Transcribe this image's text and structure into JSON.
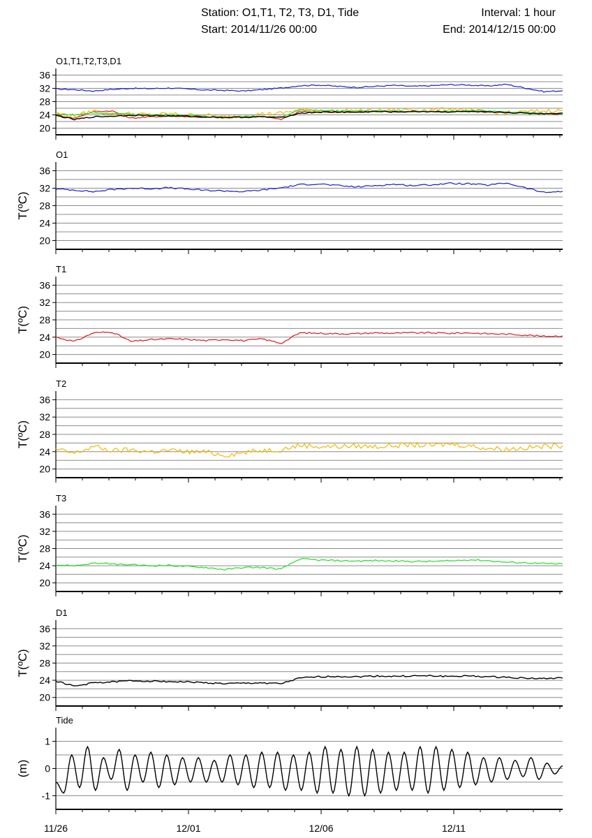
{
  "header": {
    "station": "Station: O1,T1, T2, T3, D1, Tide",
    "interval": "Interval: 1 hour",
    "start": "Start: 2014/11/26 00:00",
    "end": "End: 2014/12/15 00:00"
  },
  "colors": {
    "O1": "#1a1ad6",
    "T1": "#e01818",
    "T2": "#f5b800",
    "T3": "#22dd22",
    "D1": "#000000",
    "Tide": "#000000"
  },
  "chart_data": [
    {
      "type": "line",
      "title": "O1,T1,T2,T3,D1",
      "ylabel": "",
      "ylim": [
        18,
        38
      ],
      "yticks": [
        "20",
        "24",
        "28",
        "32",
        "36"
      ],
      "xticks": [
        "11/26",
        "12/01",
        "12/06",
        "12/11"
      ],
      "grid": true,
      "series": [
        {
          "key": "O1",
          "values": [
            31.8,
            31.6,
            31.2,
            31.7,
            32.0,
            31.9,
            32.1,
            31.8,
            31.5,
            31.4,
            31.2,
            31.6,
            32.1,
            32.8,
            33.0,
            32.6,
            32.3,
            32.6,
            32.9,
            32.6,
            32.8,
            33.1,
            33.0,
            32.7,
            33.2,
            32.1,
            31.0,
            31.3
          ]
        },
        {
          "key": "T1",
          "values": [
            24.0,
            23.0,
            25.0,
            25.2,
            23.0,
            23.4,
            23.6,
            23.5,
            23.2,
            23.5,
            23.2,
            23.6,
            22.6,
            25.0,
            24.9,
            24.8,
            24.8,
            25.0,
            24.9,
            25.0,
            25.0,
            24.9,
            25.0,
            24.8,
            24.7,
            24.5,
            24.2,
            24.3
          ]
        },
        {
          "key": "T2",
          "values": [
            24.5,
            23.6,
            25.2,
            24.2,
            24.4,
            24.0,
            24.3,
            24.0,
            23.9,
            23.2,
            23.8,
            24.3,
            24.5,
            25.5,
            25.2,
            25.2,
            25.3,
            25.2,
            25.4,
            25.6,
            25.4,
            25.8,
            25.4,
            24.8,
            24.6,
            24.9,
            25.2,
            25.4
          ]
        },
        {
          "key": "T3",
          "values": [
            24.2,
            24.0,
            24.6,
            24.4,
            24.2,
            24.0,
            24.1,
            23.8,
            23.6,
            23.1,
            23.6,
            23.6,
            23.2,
            25.6,
            25.3,
            25.2,
            25.1,
            25.2,
            25.1,
            25.0,
            25.0,
            25.1,
            25.4,
            25.2,
            24.8,
            24.7,
            24.5,
            24.4
          ]
        },
        {
          "key": "D1",
          "values": [
            23.8,
            22.6,
            23.4,
            23.6,
            23.9,
            23.8,
            23.7,
            23.6,
            23.4,
            23.2,
            23.3,
            23.4,
            23.2,
            24.5,
            24.8,
            24.9,
            24.8,
            25.0,
            24.9,
            25.0,
            25.0,
            24.9,
            25.0,
            24.8,
            24.7,
            24.5,
            24.4,
            24.5
          ]
        }
      ]
    },
    {
      "type": "line",
      "title": "O1",
      "ylabel": "T(ºC)",
      "ylim": [
        18,
        38
      ],
      "yticks": [
        "20",
        "24",
        "28",
        "32",
        "36"
      ],
      "xticks": [
        "11/26",
        "12/01",
        "12/06",
        "12/11"
      ],
      "grid": true,
      "series": [
        {
          "key": "O1",
          "values": [
            31.8,
            31.6,
            31.2,
            31.7,
            32.0,
            31.9,
            32.1,
            31.8,
            31.5,
            31.4,
            31.2,
            31.6,
            32.1,
            32.8,
            33.0,
            32.6,
            32.3,
            32.6,
            32.9,
            32.6,
            32.8,
            33.1,
            33.0,
            32.7,
            33.2,
            32.1,
            31.0,
            31.3
          ]
        }
      ]
    },
    {
      "type": "line",
      "title": "T1",
      "ylabel": "T(ºC)",
      "ylim": [
        18,
        38
      ],
      "yticks": [
        "20",
        "24",
        "28",
        "32",
        "36"
      ],
      "xticks": [
        "11/26",
        "12/01",
        "12/06",
        "12/11"
      ],
      "grid": true,
      "series": [
        {
          "key": "T1",
          "values": [
            24.0,
            23.0,
            25.0,
            25.2,
            23.0,
            23.4,
            23.6,
            23.5,
            23.2,
            23.5,
            23.2,
            23.6,
            22.6,
            25.0,
            24.9,
            24.8,
            24.8,
            25.0,
            24.9,
            25.0,
            25.0,
            24.9,
            25.0,
            24.8,
            24.7,
            24.5,
            24.2,
            24.3
          ]
        }
      ]
    },
    {
      "type": "line",
      "title": "T2",
      "ylabel": "T(ºC)",
      "ylim": [
        18,
        38
      ],
      "yticks": [
        "20",
        "24",
        "28",
        "32",
        "36"
      ],
      "xticks": [
        "11/26",
        "12/01",
        "12/06",
        "12/11"
      ],
      "grid": true,
      "series": [
        {
          "key": "T2",
          "values": [
            24.5,
            23.6,
            25.2,
            24.2,
            24.4,
            24.0,
            24.3,
            24.0,
            23.9,
            23.2,
            23.8,
            24.3,
            24.5,
            25.5,
            25.2,
            25.2,
            25.3,
            25.2,
            25.4,
            25.6,
            25.4,
            25.8,
            25.4,
            24.8,
            24.6,
            24.9,
            25.2,
            25.4
          ]
        }
      ]
    },
    {
      "type": "line",
      "title": "T3",
      "ylabel": "T(ºC)",
      "ylim": [
        18,
        38
      ],
      "yticks": [
        "20",
        "24",
        "28",
        "32",
        "36"
      ],
      "xticks": [
        "11/26",
        "12/01",
        "12/06",
        "12/11"
      ],
      "grid": true,
      "series": [
        {
          "key": "T3",
          "values": [
            24.2,
            24.0,
            24.6,
            24.4,
            24.2,
            24.0,
            24.1,
            23.8,
            23.6,
            23.1,
            23.6,
            23.6,
            23.2,
            25.6,
            25.3,
            25.2,
            25.1,
            25.2,
            25.1,
            25.0,
            25.0,
            25.1,
            25.4,
            25.2,
            24.8,
            24.7,
            24.5,
            24.4
          ]
        }
      ]
    },
    {
      "type": "line",
      "title": "D1",
      "ylabel": "T(ºC)",
      "ylim": [
        18,
        38
      ],
      "yticks": [
        "20",
        "24",
        "28",
        "32",
        "36"
      ],
      "xticks": [
        "11/26",
        "12/01",
        "12/06",
        "12/11"
      ],
      "grid": true,
      "series": [
        {
          "key": "D1",
          "values": [
            23.8,
            22.6,
            23.4,
            23.6,
            23.9,
            23.8,
            23.7,
            23.6,
            23.4,
            23.2,
            23.3,
            23.4,
            23.2,
            24.5,
            24.8,
            24.9,
            24.8,
            25.0,
            24.9,
            25.0,
            25.0,
            24.9,
            25.0,
            24.8,
            24.7,
            24.5,
            24.4,
            24.5
          ]
        }
      ]
    },
    {
      "type": "line",
      "title": "Tide",
      "ylabel": "(m)",
      "ylim": [
        -1.5,
        1.5
      ],
      "yticks": [
        "-1",
        "0",
        "1"
      ],
      "xticks": [
        "11/26",
        "12/01",
        "12/06",
        "12/11"
      ],
      "grid": true,
      "series": [
        {
          "key": "Tide",
          "values": [
            -0.5,
            -0.9,
            0.5,
            -0.7,
            0.8,
            -0.8,
            0.4,
            -0.4,
            0.7,
            -0.8,
            0.5,
            -0.5,
            0.6,
            -0.7,
            0.5,
            -0.6,
            0.4,
            -0.5,
            0.4,
            -0.5,
            0.3,
            -0.5,
            0.5,
            -0.6,
            0.5,
            -0.7,
            0.6,
            -0.7,
            0.6,
            -0.8,
            0.5,
            -0.8,
            0.6,
            -0.9,
            0.8,
            -0.9,
            0.7,
            -1.0,
            0.8,
            -1.0,
            0.7,
            -0.9,
            0.6,
            -0.8,
            0.6,
            -0.8,
            0.8,
            -0.9,
            0.8,
            -0.8,
            0.7,
            -0.7,
            0.6,
            -0.6,
            0.4,
            -0.5,
            0.4,
            -0.4,
            0.3,
            -0.3,
            0.4,
            -0.4,
            0.2,
            -0.2,
            0.1
          ]
        }
      ]
    }
  ]
}
